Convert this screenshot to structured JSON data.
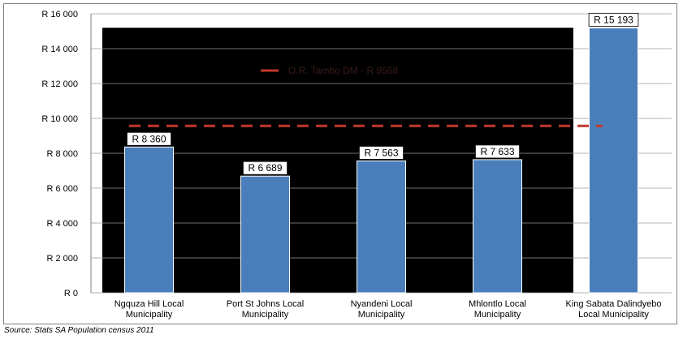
{
  "chart_data": {
    "type": "bar",
    "categories": [
      [
        "Ngquza Hill Local",
        "Municipality"
      ],
      [
        "Port St Johns Local",
        "Municipality"
      ],
      [
        "Nyandeni Local",
        "Municipality"
      ],
      [
        "Mhlontlo Local",
        "Municipality"
      ],
      [
        "King Sabata Dalindyebo",
        "Local Municipality"
      ]
    ],
    "values": [
      8360,
      6689,
      7563,
      7633,
      15193
    ],
    "data_labels": [
      "R 8 360",
      "R 6 689",
      "R 7 563",
      "R 7 633",
      "R 15 193"
    ],
    "reference_line": {
      "value": 9568,
      "legend_label": "O.R. Tambo DM  -  R 9568",
      "color": "#c0392b",
      "style": "dashed"
    },
    "ylim": [
      0,
      16000
    ],
    "y_ticks": [
      0,
      2000,
      4000,
      6000,
      8000,
      10000,
      12000,
      14000,
      16000
    ],
    "y_tick_labels": [
      "R 0",
      "R 2 000",
      "R 4 000",
      "R 6 000",
      "R 8 000",
      "R 10 000",
      "R 12 000",
      "R 14 000",
      "R 16 000"
    ],
    "bar_color": "#4a7ebb",
    "plot_background": "#000000",
    "grid": true,
    "legend_position": "top-center",
    "title": "",
    "xlabel": "",
    "ylabel": ""
  },
  "source_note": "Source: Stats SA Population census 2011"
}
